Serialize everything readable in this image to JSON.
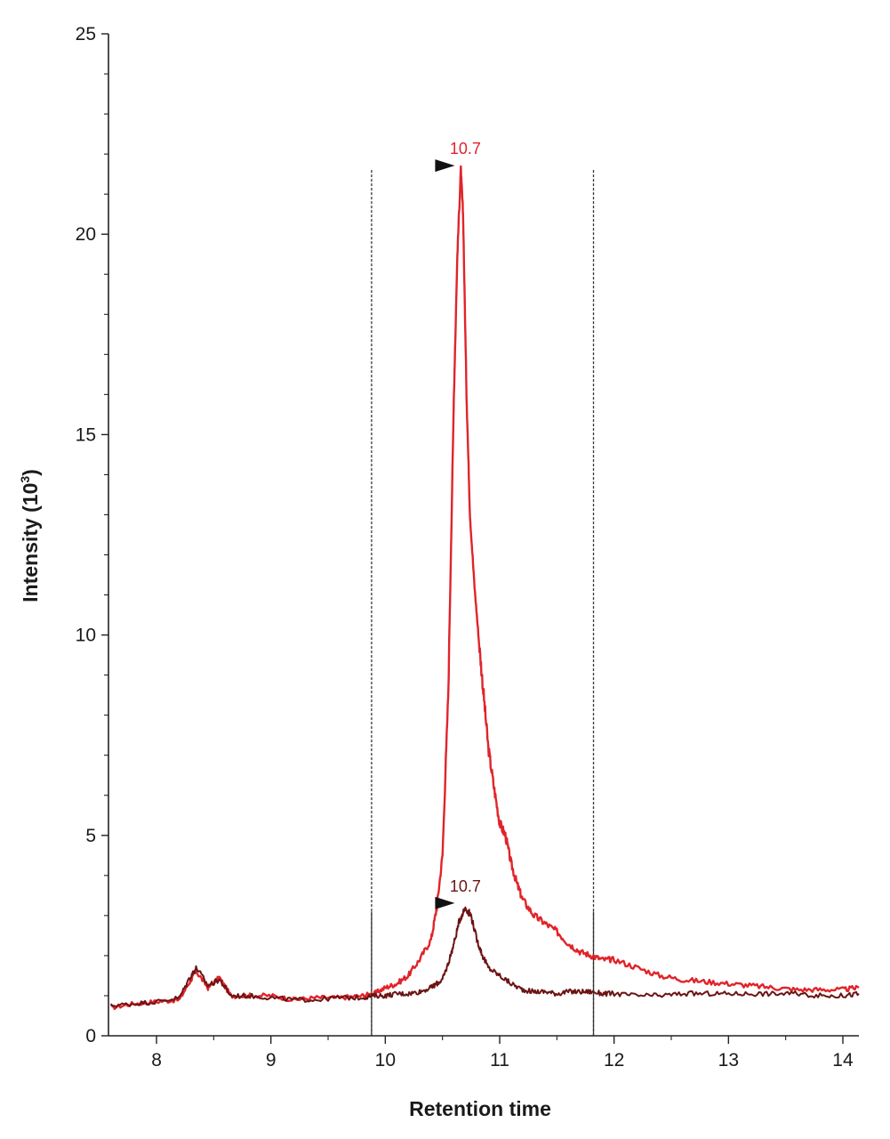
{
  "chart_data": {
    "type": "line",
    "xlabel": "Retention time",
    "ylabel": {
      "text": "Intensity (10",
      "superscript": "3",
      "suffix": ")"
    },
    "xlim": [
      7.58,
      14.14
    ],
    "ylim": [
      0,
      25
    ],
    "xticks": [
      8,
      9,
      10,
      11,
      12,
      13,
      14
    ],
    "yticks": [
      0,
      5,
      10,
      15,
      20,
      25
    ],
    "y_minor_step": 1,
    "x_minor_step": 0.5,
    "grid": false,
    "legend": "none",
    "reference_lines": [
      9.88,
      11.82
    ],
    "series": [
      {
        "color": "#e0242a",
        "x": [
          7.6,
          7.8,
          8.0,
          8.2,
          8.3,
          8.35,
          8.45,
          8.55,
          8.65,
          8.8,
          9.0,
          9.2,
          9.4,
          9.6,
          9.8,
          9.9,
          10.0,
          10.1,
          10.2,
          10.3,
          10.4,
          10.45,
          10.5,
          10.55,
          10.6,
          10.63,
          10.66,
          10.68,
          10.71,
          10.74,
          10.78,
          10.82,
          10.86,
          10.9,
          10.95,
          11.0,
          11.05,
          11.1,
          11.15,
          11.2,
          11.3,
          11.4,
          11.5,
          11.6,
          11.7,
          11.8,
          11.9,
          12.0,
          12.2,
          12.4,
          12.6,
          12.8,
          13.0,
          13.2,
          13.4,
          13.6,
          13.8,
          14.0,
          14.14
        ],
        "y": [
          0.7,
          0.8,
          0.85,
          0.9,
          1.4,
          1.6,
          1.2,
          1.45,
          1.0,
          1.0,
          1.0,
          0.9,
          0.95,
          0.95,
          1.0,
          1.05,
          1.2,
          1.3,
          1.5,
          1.9,
          2.4,
          3.2,
          4.5,
          8.5,
          16.0,
          19.5,
          21.6,
          20.5,
          16.0,
          13.0,
          11.2,
          9.8,
          8.5,
          7.2,
          6.2,
          5.3,
          5.0,
          4.3,
          3.8,
          3.4,
          3.0,
          2.8,
          2.6,
          2.3,
          2.1,
          2.0,
          1.9,
          1.9,
          1.7,
          1.5,
          1.4,
          1.35,
          1.3,
          1.25,
          1.2,
          1.15,
          1.15,
          1.15,
          1.2
        ]
      },
      {
        "color": "#6b1414",
        "x": [
          7.6,
          7.8,
          8.0,
          8.2,
          8.3,
          8.35,
          8.45,
          8.55,
          8.65,
          8.8,
          9.0,
          9.2,
          9.4,
          9.6,
          9.8,
          9.9,
          10.0,
          10.1,
          10.2,
          10.3,
          10.4,
          10.45,
          10.5,
          10.55,
          10.6,
          10.65,
          10.7,
          10.75,
          10.8,
          10.85,
          10.9,
          11.0,
          11.1,
          11.2,
          11.3,
          11.4,
          11.5,
          11.6,
          11.7,
          11.8,
          11.9,
          12.0,
          12.2,
          12.4,
          12.6,
          12.8,
          13.0,
          13.2,
          13.4,
          13.6,
          13.8,
          14.0,
          14.14
        ],
        "y": [
          0.75,
          0.8,
          0.85,
          0.95,
          1.5,
          1.7,
          1.25,
          1.4,
          1.0,
          1.0,
          0.95,
          0.9,
          0.9,
          0.95,
          0.95,
          1.0,
          1.0,
          1.05,
          1.05,
          1.1,
          1.2,
          1.3,
          1.4,
          1.8,
          2.3,
          2.9,
          3.2,
          3.0,
          2.4,
          2.0,
          1.7,
          1.5,
          1.3,
          1.15,
          1.1,
          1.1,
          1.05,
          1.1,
          1.1,
          1.1,
          1.05,
          1.05,
          1.0,
          1.0,
          1.05,
          1.05,
          1.05,
          1.05,
          1.05,
          1.05,
          1.0,
          1.0,
          1.05
        ]
      }
    ],
    "annotations": [
      {
        "label": "10.7",
        "x": 10.7,
        "y": 21.6,
        "color": "#e0242a",
        "marker": "right-pointing triangle"
      },
      {
        "label": "10.7",
        "x": 10.7,
        "y": 3.2,
        "color": "#6b1414",
        "marker": "right-pointing triangle"
      }
    ]
  }
}
